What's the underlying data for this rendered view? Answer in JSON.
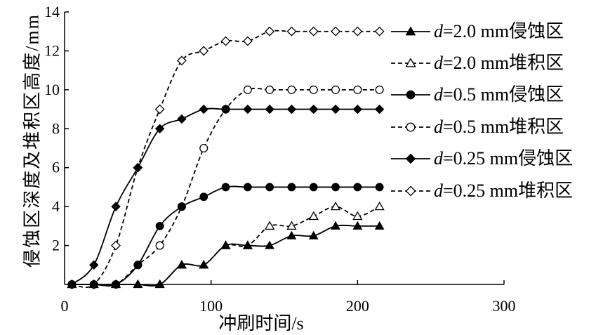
{
  "chart_data": {
    "type": "line",
    "xlabel": "冲刷时间/s",
    "ylabel": "侵蚀区深度及堆积区高度/mm",
    "xlim": [
      0,
      300
    ],
    "ylim": [
      0,
      14
    ],
    "xticks": [
      0,
      100,
      200,
      300
    ],
    "yticks": [
      2,
      4,
      6,
      8,
      10,
      12,
      14
    ],
    "grid": false,
    "legend": "right",
    "x": [
      5,
      20,
      35,
      50,
      65,
      80,
      95,
      110,
      125,
      140,
      155,
      170,
      185,
      200,
      215
    ],
    "series": [
      {
        "name": "d=2.0 mm侵蚀区",
        "marker": "triangle",
        "filled": true,
        "dashed": false,
        "values": [
          0,
          0,
          0,
          0,
          0,
          1,
          1,
          2,
          2,
          2,
          2.5,
          2.5,
          3,
          3,
          3
        ]
      },
      {
        "name": "d=2.0 mm堆积区",
        "marker": "triangle",
        "filled": false,
        "dashed": true,
        "values": [
          0,
          0,
          0,
          0,
          0,
          1,
          1,
          2,
          2,
          3,
          3,
          3.5,
          4,
          3.5,
          4
        ]
      },
      {
        "name": "d=0.5 mm侵蚀区",
        "marker": "circle",
        "filled": true,
        "dashed": false,
        "values": [
          0,
          0,
          0,
          1,
          3,
          4,
          4.5,
          5,
          5,
          5,
          5,
          5,
          5,
          5,
          5
        ]
      },
      {
        "name": "d=0.5 mm堆积区",
        "marker": "circle",
        "filled": false,
        "dashed": true,
        "values": [
          0,
          0,
          0,
          1,
          2,
          4,
          7,
          9,
          10,
          10,
          10,
          10,
          10,
          10,
          10
        ]
      },
      {
        "name": "d=0.25 mm侵蚀区",
        "marker": "diamond",
        "filled": true,
        "dashed": false,
        "values": [
          0,
          1,
          4,
          6,
          8,
          8.5,
          9,
          9,
          9,
          9,
          9,
          9,
          9,
          9,
          9
        ]
      },
      {
        "name": "d=0.25 mm堆积区",
        "marker": "diamond",
        "filled": false,
        "dashed": true,
        "values": [
          0,
          0,
          2,
          6,
          9,
          11.5,
          12,
          12.5,
          12.5,
          13,
          13,
          13,
          13,
          13,
          13
        ]
      }
    ]
  }
}
